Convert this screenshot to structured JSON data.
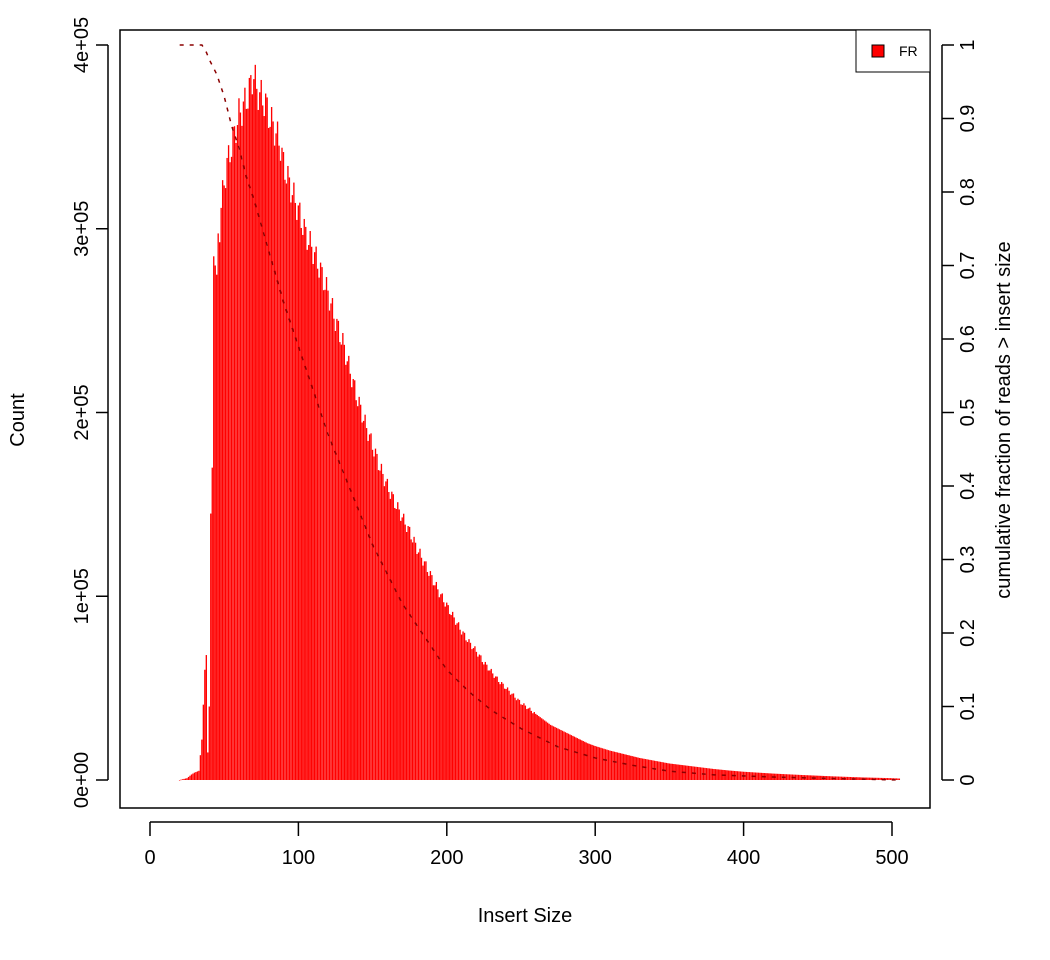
{
  "chart_data": {
    "type": "bar",
    "title": "",
    "xlabel": "Insert Size",
    "ylabel": "Count",
    "y2label": "cumulative fraction of reads > insert size",
    "xlim": [
      0,
      500
    ],
    "ylim": [
      0,
      400000
    ],
    "y2lim": [
      0,
      1
    ],
    "x_ticks": [
      0,
      100,
      200,
      300,
      400,
      500
    ],
    "y_ticks": [
      0,
      100000,
      200000,
      300000,
      400000
    ],
    "y_tick_labels": [
      "0e+00",
      "1e+05",
      "2e+05",
      "3e+05",
      "4e+05"
    ],
    "y2_ticks": [
      0,
      0.1,
      0.2,
      0.3,
      0.4,
      0.5,
      0.6,
      0.7,
      0.8,
      0.9,
      1
    ],
    "y2_tick_labels": [
      "0",
      "0.1",
      "0.2",
      "0.3",
      "0.4",
      "0.5",
      "0.6",
      "0.7",
      "0.8",
      "0.9",
      "1"
    ],
    "grid": false,
    "legend_position": "top-right",
    "series": [
      {
        "name": "FR",
        "color": "#ff0000",
        "kind": "histogram",
        "points": [
          [
            20,
            0
          ],
          [
            25,
            1000
          ],
          [
            28,
            3000
          ],
          [
            30,
            4000
          ],
          [
            33,
            5000
          ],
          [
            35,
            22000
          ],
          [
            37,
            60000
          ],
          [
            38,
            68000
          ],
          [
            39,
            15000
          ],
          [
            40,
            40000
          ],
          [
            41,
            145000
          ],
          [
            42,
            170000
          ],
          [
            43,
            285000
          ],
          [
            44,
            280000
          ],
          [
            45,
            275000
          ],
          [
            46,
            295000
          ],
          [
            47,
            300000
          ],
          [
            48,
            312000
          ],
          [
            50,
            325000
          ],
          [
            52,
            335000
          ],
          [
            55,
            345000
          ],
          [
            58,
            355000
          ],
          [
            60,
            362000
          ],
          [
            62,
            365000
          ],
          [
            65,
            370000
          ],
          [
            68,
            378000
          ],
          [
            70,
            385000
          ],
          [
            72,
            375000
          ],
          [
            75,
            372000
          ],
          [
            78,
            368000
          ],
          [
            80,
            362000
          ],
          [
            85,
            352000
          ],
          [
            88,
            345000
          ],
          [
            90,
            335000
          ],
          [
            95,
            322000
          ],
          [
            100,
            310000
          ],
          [
            105,
            297000
          ],
          [
            110,
            288000
          ],
          [
            115,
            277000
          ],
          [
            120,
            265000
          ],
          [
            125,
            250000
          ],
          [
            130,
            238000
          ],
          [
            135,
            222000
          ],
          [
            140,
            207000
          ],
          [
            145,
            194000
          ],
          [
            150,
            182000
          ],
          [
            155,
            170000
          ],
          [
            160,
            160000
          ],
          [
            165,
            151000
          ],
          [
            170,
            143000
          ],
          [
            175,
            135000
          ],
          [
            180,
            126000
          ],
          [
            185,
            118000
          ],
          [
            190,
            110000
          ],
          [
            195,
            102000
          ],
          [
            200,
            95000
          ],
          [
            205,
            88000
          ],
          [
            210,
            81000
          ],
          [
            215,
            75000
          ],
          [
            220,
            70000
          ],
          [
            225,
            64000
          ],
          [
            230,
            59000
          ],
          [
            235,
            54000
          ],
          [
            240,
            50000
          ],
          [
            245,
            46000
          ],
          [
            250,
            42000
          ],
          [
            255,
            39000
          ],
          [
            260,
            36000
          ],
          [
            265,
            33000
          ],
          [
            270,
            30000
          ],
          [
            275,
            28000
          ],
          [
            280,
            26000
          ],
          [
            285,
            24000
          ],
          [
            290,
            22000
          ],
          [
            295,
            20000
          ],
          [
            300,
            18500
          ],
          [
            310,
            16000
          ],
          [
            320,
            14000
          ],
          [
            330,
            12000
          ],
          [
            340,
            10500
          ],
          [
            350,
            9000
          ],
          [
            360,
            8000
          ],
          [
            370,
            7000
          ],
          [
            380,
            6000
          ],
          [
            390,
            5200
          ],
          [
            400,
            4500
          ],
          [
            420,
            3500
          ],
          [
            440,
            2700
          ],
          [
            460,
            2000
          ],
          [
            480,
            1400
          ],
          [
            500,
            1000
          ],
          [
            505,
            800
          ]
        ]
      }
    ],
    "cumulative": {
      "color": "#8b0000",
      "style": "dashed",
      "points": [
        [
          20,
          1
        ],
        [
          35,
          1
        ],
        [
          38,
          0.99
        ],
        [
          40,
          0.98
        ],
        [
          45,
          0.96
        ],
        [
          50,
          0.93
        ],
        [
          55,
          0.89
        ],
        [
          60,
          0.86
        ],
        [
          65,
          0.82
        ],
        [
          70,
          0.79
        ],
        [
          80,
          0.72
        ],
        [
          90,
          0.65
        ],
        [
          100,
          0.59
        ],
        [
          110,
          0.53
        ],
        [
          120,
          0.47
        ],
        [
          130,
          0.42
        ],
        [
          140,
          0.37
        ],
        [
          150,
          0.32
        ],
        [
          160,
          0.28
        ],
        [
          170,
          0.24
        ],
        [
          180,
          0.21
        ],
        [
          190,
          0.18
        ],
        [
          200,
          0.15
        ],
        [
          215,
          0.12
        ],
        [
          230,
          0.095
        ],
        [
          250,
          0.07
        ],
        [
          275,
          0.045
        ],
        [
          300,
          0.03
        ],
        [
          325,
          0.02
        ],
        [
          350,
          0.012
        ],
        [
          380,
          0.007
        ],
        [
          420,
          0.004
        ],
        [
          460,
          0.002
        ],
        [
          505,
          0.0
        ]
      ]
    }
  }
}
